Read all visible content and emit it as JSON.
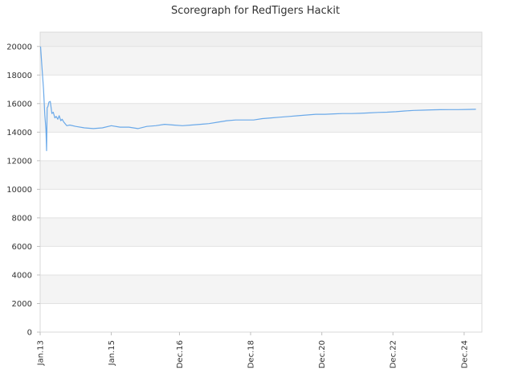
{
  "chart_data": {
    "type": "line",
    "title": "Scoregraph for RedTigers Hackit",
    "xlabel": "",
    "ylabel": "",
    "ylim": [
      0,
      21000
    ],
    "xlim": [
      "2013-01-01",
      "2025-06-01"
    ],
    "grid": true,
    "legend": "none",
    "y_ticks": [
      0,
      2000,
      4000,
      6000,
      8000,
      10000,
      12000,
      14000,
      16000,
      18000,
      20000
    ],
    "x_ticks": [
      {
        "label": "Jan.13",
        "date": "2013-01-01"
      },
      {
        "label": "Jan.15",
        "date": "2015-01-01"
      },
      {
        "label": "Dec.16",
        "date": "2016-12-01"
      },
      {
        "label": "Dec.18",
        "date": "2018-12-01"
      },
      {
        "label": "Dec.20",
        "date": "2020-12-01"
      },
      {
        "label": "Dec.22",
        "date": "2022-12-01"
      },
      {
        "label": "Dec.24",
        "date": "2024-12-01"
      }
    ],
    "series": [
      {
        "color": "#6aa9e9",
        "points": [
          [
            "2013-01-05",
            20000
          ],
          [
            "2013-01-20",
            18500
          ],
          [
            "2013-02-05",
            17000
          ],
          [
            "2013-02-18",
            15200
          ],
          [
            "2013-03-01",
            14200
          ],
          [
            "2013-03-08",
            12700
          ],
          [
            "2013-03-14",
            15700
          ],
          [
            "2013-03-22",
            15800
          ],
          [
            "2013-04-01",
            16100
          ],
          [
            "2013-04-15",
            16150
          ],
          [
            "2013-05-01",
            15300
          ],
          [
            "2013-05-15",
            15400
          ],
          [
            "2013-06-01",
            15000
          ],
          [
            "2013-06-15",
            15100
          ],
          [
            "2013-07-01",
            14900
          ],
          [
            "2013-07-15",
            15150
          ],
          [
            "2013-08-01",
            14800
          ],
          [
            "2013-08-15",
            14900
          ],
          [
            "2013-09-01",
            14700
          ],
          [
            "2013-10-01",
            14450
          ],
          [
            "2013-11-01",
            14500
          ],
          [
            "2014-01-01",
            14400
          ],
          [
            "2014-04-01",
            14300
          ],
          [
            "2014-07-01",
            14250
          ],
          [
            "2014-10-01",
            14300
          ],
          [
            "2015-01-01",
            14450
          ],
          [
            "2015-04-01",
            14350
          ],
          [
            "2015-07-01",
            14350
          ],
          [
            "2015-10-01",
            14250
          ],
          [
            "2016-01-01",
            14400
          ],
          [
            "2016-04-01",
            14450
          ],
          [
            "2016-07-01",
            14550
          ],
          [
            "2016-10-01",
            14500
          ],
          [
            "2017-01-01",
            14450
          ],
          [
            "2017-04-01",
            14500
          ],
          [
            "2017-07-01",
            14550
          ],
          [
            "2017-10-01",
            14600
          ],
          [
            "2018-01-01",
            14700
          ],
          [
            "2018-04-01",
            14800
          ],
          [
            "2018-07-01",
            14850
          ],
          [
            "2018-10-01",
            14850
          ],
          [
            "2019-01-01",
            14850
          ],
          [
            "2019-04-01",
            14950
          ],
          [
            "2019-07-01",
            15000
          ],
          [
            "2019-10-01",
            15050
          ],
          [
            "2020-01-01",
            15100
          ],
          [
            "2020-04-01",
            15150
          ],
          [
            "2020-07-01",
            15200
          ],
          [
            "2020-10-01",
            15250
          ],
          [
            "2021-01-01",
            15250
          ],
          [
            "2021-04-01",
            15280
          ],
          [
            "2021-07-01",
            15300
          ],
          [
            "2021-10-01",
            15300
          ],
          [
            "2022-01-01",
            15320
          ],
          [
            "2022-04-01",
            15350
          ],
          [
            "2022-07-01",
            15380
          ],
          [
            "2022-10-01",
            15400
          ],
          [
            "2023-01-01",
            15430
          ],
          [
            "2023-04-01",
            15480
          ],
          [
            "2023-07-01",
            15520
          ],
          [
            "2023-10-01",
            15540
          ],
          [
            "2024-01-01",
            15560
          ],
          [
            "2024-04-01",
            15570
          ],
          [
            "2024-07-01",
            15580
          ],
          [
            "2024-10-01",
            15580
          ],
          [
            "2025-01-01",
            15590
          ],
          [
            "2025-04-01",
            15600
          ]
        ]
      }
    ]
  }
}
